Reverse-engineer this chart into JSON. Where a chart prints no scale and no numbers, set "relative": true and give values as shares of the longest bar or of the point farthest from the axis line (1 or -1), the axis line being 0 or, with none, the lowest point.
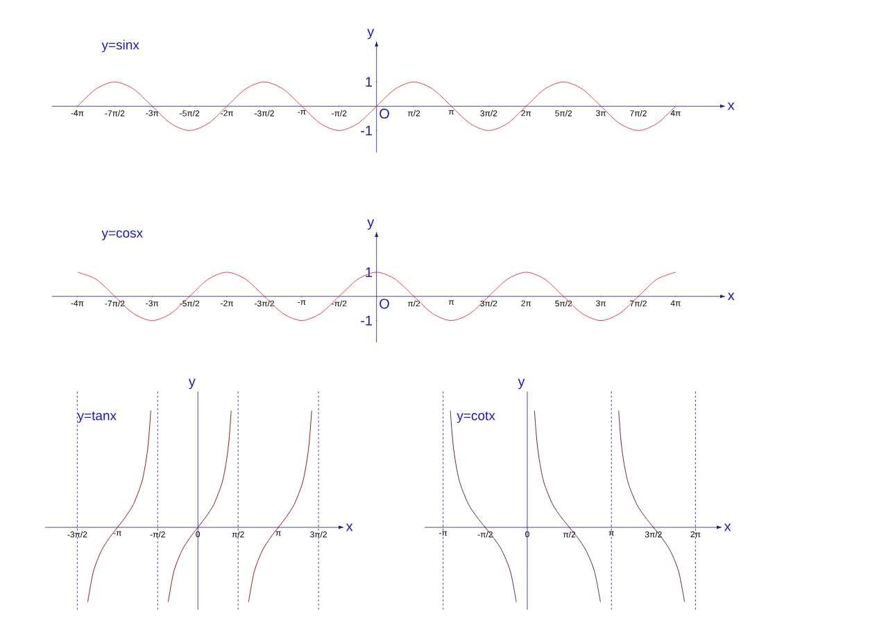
{
  "chart_data": [
    {
      "type": "line",
      "title": "y=sinx",
      "xlabel": "x",
      "ylabel": "y",
      "color": "#e8403a",
      "x": [
        -12.566,
        -11.781,
        -10.996,
        -10.21,
        -9.425,
        -8.639,
        -7.854,
        -7.069,
        -6.283,
        -5.498,
        -4.712,
        -3.927,
        -3.142,
        -2.356,
        -1.571,
        -0.785,
        0,
        0.785,
        1.571,
        2.356,
        3.142,
        3.927,
        4.712,
        5.498,
        6.283,
        7.069,
        7.854,
        8.639,
        9.425,
        10.21,
        10.996,
        11.781,
        12.566
      ],
      "values": [
        0,
        0.71,
        1,
        0.71,
        0,
        -0.71,
        -1,
        -0.71,
        0,
        0.71,
        1,
        0.71,
        0,
        -0.71,
        -1,
        -0.71,
        0,
        0.71,
        1,
        0.71,
        0,
        -0.71,
        -1,
        -0.71,
        0,
        0.71,
        1,
        0.71,
        0,
        -0.71,
        -1,
        -0.71,
        0
      ],
      "xlim": [
        -13.63,
        14.64
      ],
      "ylim": [
        -1.9,
        2.66
      ],
      "yticks": [
        -1,
        1
      ],
      "xticks": [
        {
          "value": -12.566,
          "label": "-4π"
        },
        {
          "value": -10.996,
          "label": "-7π/2"
        },
        {
          "value": -9.425,
          "label": "-3π"
        },
        {
          "value": -7.854,
          "label": "-5π/2"
        },
        {
          "value": -6.283,
          "label": "-2π"
        },
        {
          "value": -4.712,
          "label": "-3π/2"
        },
        {
          "value": -3.142,
          "label": "-π"
        },
        {
          "value": -1.571,
          "label": "-π/2"
        },
        {
          "value": 1.571,
          "label": "π/2"
        },
        {
          "value": 3.142,
          "label": "π"
        },
        {
          "value": 4.712,
          "label": "3π/2"
        },
        {
          "value": 6.283,
          "label": "2π"
        },
        {
          "value": 7.854,
          "label": "5π/2"
        },
        {
          "value": 9.425,
          "label": "3π"
        },
        {
          "value": 10.996,
          "label": "7π/2"
        },
        {
          "value": 12.566,
          "label": "4π"
        }
      ],
      "annotations": [
        "O"
      ]
    },
    {
      "type": "line",
      "title": "y=cosx",
      "xlabel": "x",
      "ylabel": "y",
      "color": "#e8403a",
      "x": [
        -12.566,
        -11.781,
        -10.996,
        -10.21,
        -9.425,
        -8.639,
        -7.854,
        -7.069,
        -6.283,
        -5.498,
        -4.712,
        -3.927,
        -3.142,
        -2.356,
        -1.571,
        -0.785,
        0,
        0.785,
        1.571,
        2.356,
        3.142,
        3.927,
        4.712,
        5.498,
        6.283,
        7.069,
        7.854,
        8.639,
        9.425,
        10.21,
        10.996,
        11.781,
        12.566
      ],
      "values": [
        1,
        0.71,
        0,
        -0.71,
        -1,
        -0.71,
        0,
        0.71,
        1,
        0.71,
        0,
        -0.71,
        -1,
        -0.71,
        0,
        0.71,
        1,
        0.71,
        0,
        -0.71,
        -1,
        -0.71,
        0,
        0.71,
        1,
        0.71,
        0,
        -0.71,
        -1,
        -0.71,
        0,
        0.71,
        1
      ],
      "xlim": [
        -13.63,
        14.64
      ],
      "ylim": [
        -1.9,
        2.66
      ],
      "yticks": [
        -1,
        1
      ],
      "xticks": [
        {
          "value": -12.566,
          "label": "-4π"
        },
        {
          "value": -10.996,
          "label": "-7π/2"
        },
        {
          "value": -9.425,
          "label": "-3π"
        },
        {
          "value": -7.854,
          "label": "-5π/2"
        },
        {
          "value": -6.283,
          "label": "-2π"
        },
        {
          "value": -4.712,
          "label": "-3π/2"
        },
        {
          "value": -3.142,
          "label": "-π"
        },
        {
          "value": -1.571,
          "label": "-π/2"
        },
        {
          "value": 1.571,
          "label": "π/2"
        },
        {
          "value": 3.142,
          "label": "π"
        },
        {
          "value": 4.712,
          "label": "3π/2"
        },
        {
          "value": 6.283,
          "label": "2π"
        },
        {
          "value": 7.854,
          "label": "5π/2"
        },
        {
          "value": 9.425,
          "label": "3π"
        },
        {
          "value": 10.996,
          "label": "7π/2"
        },
        {
          "value": 12.566,
          "label": "4π"
        }
      ],
      "annotations": [
        "O"
      ]
    },
    {
      "type": "line",
      "title": "y=tanx",
      "xlabel": "x",
      "ylabel": "y",
      "relative": true,
      "tick_labels": "x",
      "xlim": [
        -5.969,
        5.686
      ],
      "series": [
        {
          "color": "#8b1a1a",
          "x": [
            -4.304,
            -4.084,
            -3.77,
            -3.456,
            -3.142,
            -2.828,
            -2.514,
            -2.2,
            -2.042,
            -1.948,
            -1.885,
            -1.841
          ],
          "values": [
            -0.64,
            -0.38,
            -0.2,
            -0.09,
            0,
            0.09,
            0.2,
            0.38,
            0.55,
            0.7,
            0.86,
            1.0
          ]
        },
        {
          "color": "#8b1a1a",
          "x": [
            -1.162,
            -0.942,
            -0.628,
            -0.314,
            0,
            0.314,
            0.628,
            0.942,
            1.1,
            1.194,
            1.257,
            1.301
          ],
          "values": [
            -0.64,
            -0.38,
            -0.2,
            -0.09,
            0,
            0.09,
            0.2,
            0.38,
            0.55,
            0.7,
            0.86,
            1.0
          ]
        },
        {
          "color": "#8b1a1a",
          "x": [
            1.98,
            2.2,
            2.514,
            2.828,
            3.142,
            3.456,
            3.77,
            4.084,
            4.242,
            4.336,
            4.399,
            4.443
          ],
          "values": [
            -0.64,
            -0.38,
            -0.2,
            -0.09,
            0,
            0.09,
            0.2,
            0.38,
            0.55,
            0.7,
            0.86,
            1.0
          ]
        }
      ],
      "xticks": [
        {
          "value": -4.712,
          "label": "-3π/2"
        },
        {
          "value": -3.142,
          "label": "-π"
        },
        {
          "value": -1.571,
          "label": "-π/2"
        },
        0,
        {
          "value": 1.571,
          "label": "π/2"
        },
        {
          "value": 3.142,
          "label": "π"
        },
        {
          "value": 4.712,
          "label": "3π/2"
        }
      ],
      "ref_lines": [
        {
          "axis": "x",
          "value": 0,
          "color": "#1a1a8c",
          "line_style": "solid"
        },
        {
          "axis": "x",
          "value": -4.712,
          "color": "#1a1a8c",
          "line_style": "dashed"
        },
        {
          "axis": "x",
          "value": -1.571,
          "color": "#1a1a8c",
          "line_style": "dashed"
        },
        {
          "axis": "x",
          "value": 1.571,
          "color": "#1a1a8c",
          "line_style": "dashed"
        },
        {
          "axis": "x",
          "value": 4.712,
          "color": "#1a1a8c",
          "line_style": "dashed"
        }
      ]
    },
    {
      "type": "line",
      "title": "y=cotx",
      "xlabel": "x",
      "ylabel": "y",
      "relative": true,
      "tick_labels": "x",
      "xlim": [
        -3.833,
        7.257
      ],
      "series": [
        {
          "color": "#6a2050",
          "x": [
            -2.872,
            -2.828,
            -2.765,
            -2.671,
            -2.514,
            -2.2,
            -1.885,
            -1.571,
            -1.257,
            -0.942,
            -0.628,
            -0.409
          ],
          "values": [
            1.0,
            0.86,
            0.7,
            0.55,
            0.38,
            0.2,
            0.09,
            0,
            -0.09,
            -0.2,
            -0.38,
            -0.64
          ]
        },
        {
          "color": "#6a2050",
          "x": [
            0.27,
            0.314,
            0.377,
            0.471,
            0.628,
            0.942,
            1.257,
            1.571,
            1.885,
            2.199,
            2.513,
            2.733
          ],
          "values": [
            1.0,
            0.86,
            0.7,
            0.55,
            0.38,
            0.2,
            0.09,
            0,
            -0.09,
            -0.2,
            -0.38,
            -0.64
          ]
        },
        {
          "color": "#6a2050",
          "x": [
            3.412,
            3.456,
            3.519,
            3.613,
            3.77,
            4.084,
            4.399,
            4.713,
            5.027,
            5.341,
            5.655,
            5.875
          ],
          "values": [
            1.0,
            0.86,
            0.7,
            0.55,
            0.38,
            0.2,
            0.09,
            0,
            -0.09,
            -0.2,
            -0.38,
            -0.64
          ]
        }
      ],
      "xticks": [
        {
          "value": -3.142,
          "label": "-π"
        },
        {
          "value": -1.571,
          "label": "-π/2"
        },
        0,
        {
          "value": 1.571,
          "label": "π/2"
        },
        {
          "value": 3.142,
          "label": "π"
        },
        {
          "value": 4.712,
          "label": "3π/2"
        },
        {
          "value": 6.283,
          "label": "2π"
        }
      ],
      "ref_lines": [
        {
          "axis": "x",
          "value": 0,
          "color": "#1a1a8c",
          "line_style": "solid"
        },
        {
          "axis": "x",
          "value": -3.142,
          "color": "#1a1a8c",
          "line_style": "dashed"
        },
        {
          "axis": "x",
          "value": 3.142,
          "color": "#1a1a8c",
          "line_style": "dashed"
        },
        {
          "axis": "x",
          "value": 6.283,
          "color": "#1a1a8c",
          "line_style": "dashed"
        }
      ]
    }
  ]
}
